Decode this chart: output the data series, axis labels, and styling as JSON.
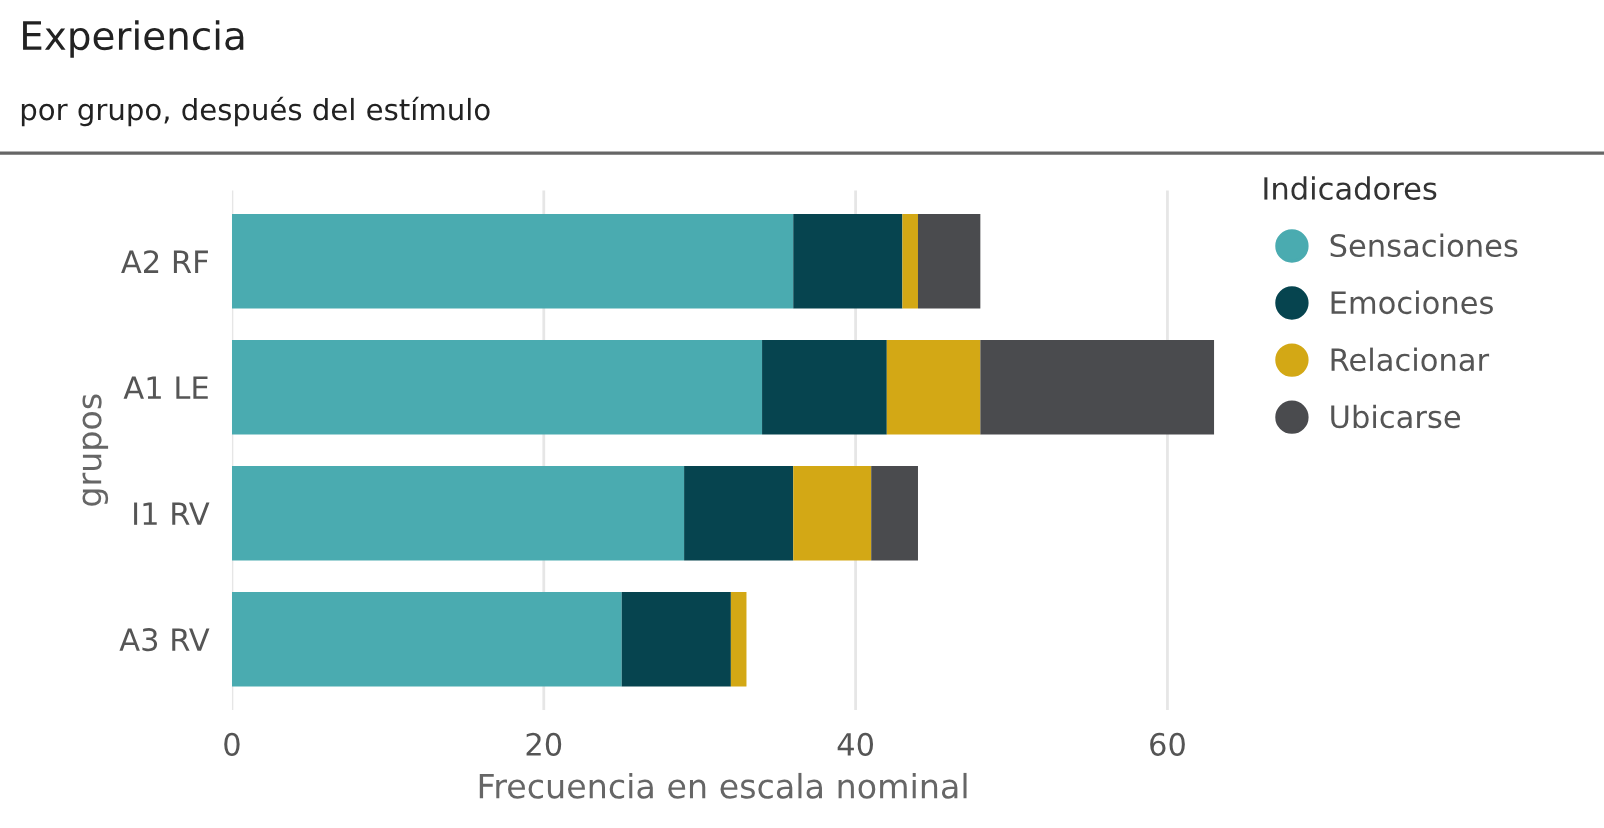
{
  "chart_data": {
    "type": "bar",
    "orientation": "horizontal",
    "stacked": true,
    "title": "Experiencia",
    "subtitle": "por grupo, después del estímulo",
    "xlabel": "Frecuencia en escala nominal",
    "ylabel": "grupos",
    "legend_title": "Indicadores",
    "legend": "right",
    "grid": "x",
    "marker": "circle",
    "categories": [
      "A2 RF",
      "A1 LE",
      "I1 RV",
      "A3 RV"
    ],
    "xlim": [
      0,
      63
    ],
    "xticks": [
      0,
      20,
      40,
      60
    ],
    "series": [
      {
        "name": "Sensaciones",
        "color": "#4aabb0",
        "values": [
          36,
          34,
          29,
          25
        ]
      },
      {
        "name": "Emociones",
        "color": "#06444f",
        "values": [
          7,
          8,
          7,
          7
        ]
      },
      {
        "name": "Relacionar",
        "color": "#d3a815",
        "values": [
          1,
          6,
          5,
          1
        ]
      },
      {
        "name": "Ubicarse",
        "color": "#4a4b4e",
        "values": [
          4,
          15,
          3,
          null
        ]
      }
    ]
  }
}
